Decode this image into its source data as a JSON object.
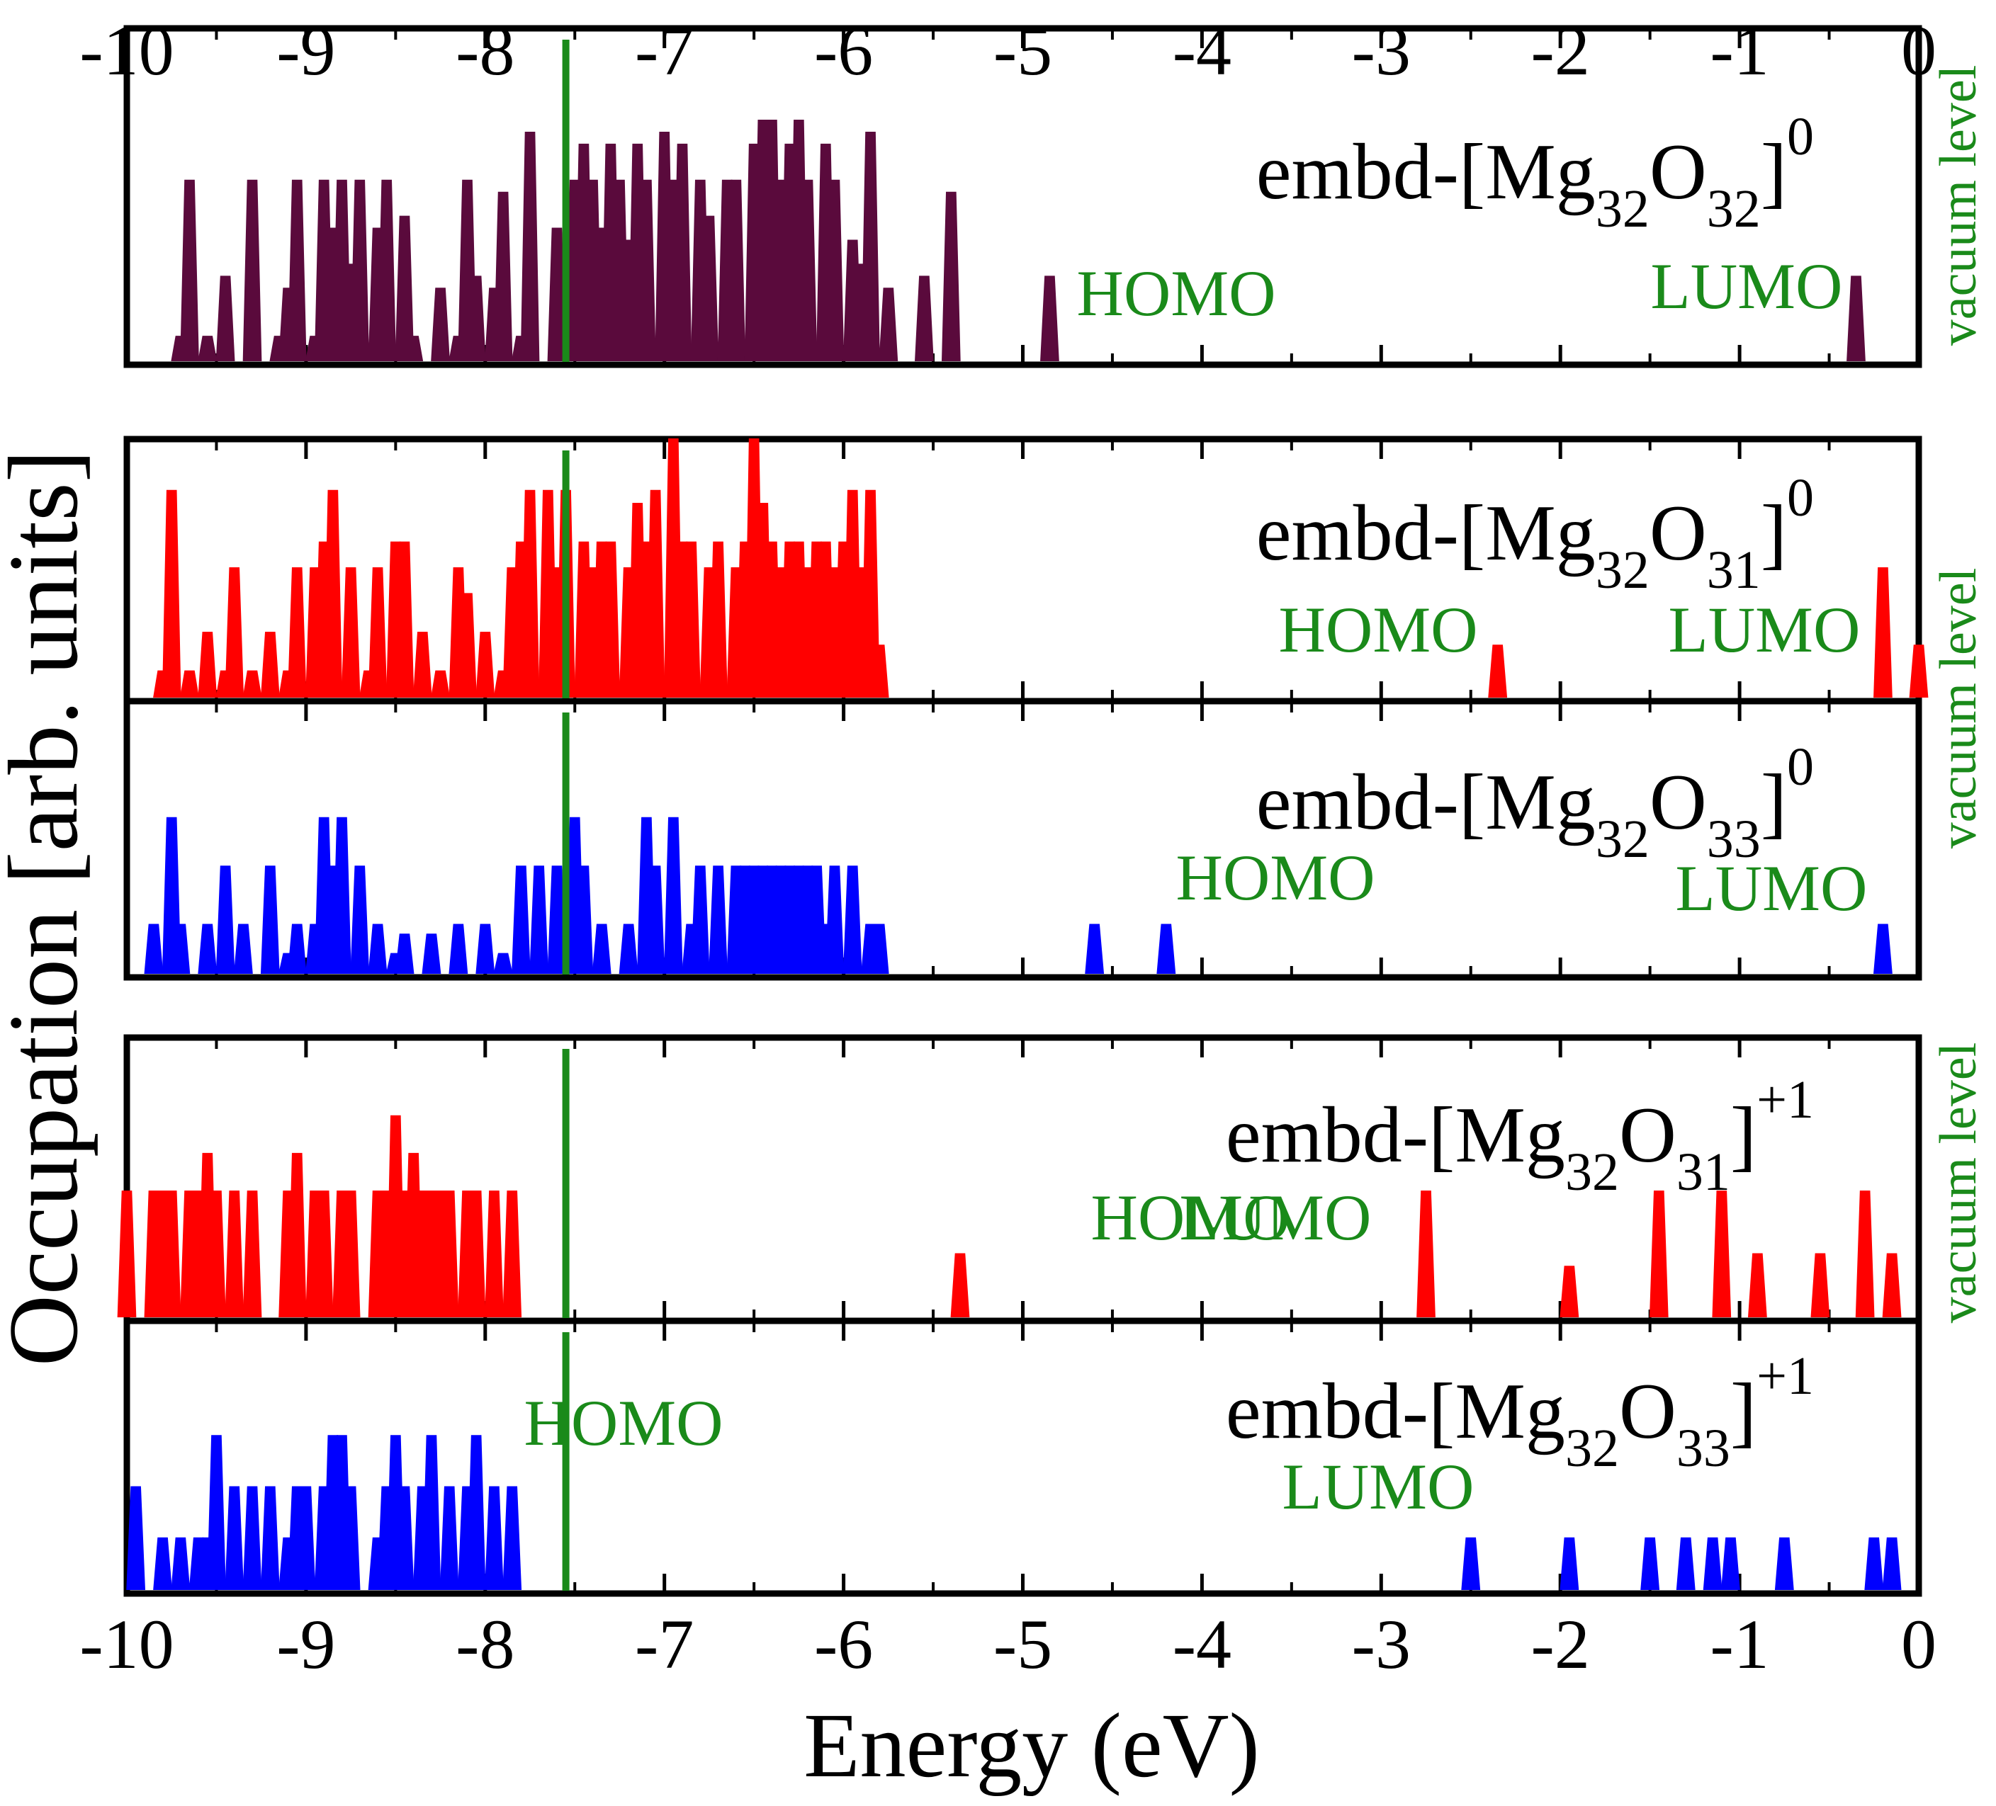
{
  "chart_data": {
    "type": "area",
    "x_range": [
      -10,
      0
    ],
    "xlabel": "Energy (eV)",
    "ylabel": "Occupation [arb. units]",
    "x_ticks": [
      -10,
      -9,
      -8,
      -7,
      -6,
      -5,
      -4,
      -3,
      -2,
      -1,
      0
    ],
    "x_tick_labels": [
      "-10",
      "-9",
      "-8",
      "-7",
      "-6",
      "-5",
      "-4",
      "-3",
      "-2",
      "-1",
      "0"
    ],
    "reference_line_energy": -7.55,
    "vacuum_level_label": "vacuum level",
    "colors": {
      "purple": "#5a0a3c",
      "red": "#ff0000",
      "blue": "#0000ff",
      "green": "#1a8a1a",
      "axis": "#000000"
    },
    "panels": [
      {
        "name": "embd-[Mg32O32]0",
        "color": "purple",
        "title": {
          "prefix": "embd-[Mg",
          "sub1": "32",
          "mid": "O",
          "sub2": "32",
          "suffix": "]",
          "charge": "0"
        },
        "homo_label": "HOMO",
        "lumo_label": "LUMO",
        "homo_energy": -4.85,
        "lumo_energy": -0.35,
        "levels": [
          [
            -9.7,
            0.1
          ],
          [
            -9.65,
            0.75
          ],
          [
            -9.55,
            0.1
          ],
          [
            -9.45,
            0.35
          ],
          [
            -9.3,
            0.75
          ],
          [
            -9.15,
            0.1
          ],
          [
            -9.1,
            0.3
          ],
          [
            -9.05,
            0.75
          ],
          [
            -8.95,
            0.1
          ],
          [
            -8.9,
            0.75
          ],
          [
            -8.85,
            0.55
          ],
          [
            -8.8,
            0.75
          ],
          [
            -8.75,
            0.4
          ],
          [
            -8.7,
            0.75
          ],
          [
            -8.6,
            0.55
          ],
          [
            -8.55,
            0.75
          ],
          [
            -8.45,
            0.6
          ],
          [
            -8.4,
            0.1
          ],
          [
            -8.25,
            0.3
          ],
          [
            -8.15,
            0.1
          ],
          [
            -8.1,
            0.75
          ],
          [
            -8.05,
            0.35
          ],
          [
            -7.95,
            0.3
          ],
          [
            -7.9,
            0.7
          ],
          [
            -7.8,
            0.1
          ],
          [
            -7.75,
            0.95
          ],
          [
            -7.6,
            0.55
          ],
          [
            -7.5,
            0.75
          ],
          [
            -7.45,
            0.9
          ],
          [
            -7.4,
            0.75
          ],
          [
            -7.35,
            0.55
          ],
          [
            -7.3,
            0.9
          ],
          [
            -7.25,
            0.75
          ],
          [
            -7.2,
            0.5
          ],
          [
            -7.15,
            0.9
          ],
          [
            -7.1,
            0.75
          ],
          [
            -7.0,
            0.95
          ],
          [
            -6.95,
            0.75
          ],
          [
            -6.9,
            0.9
          ],
          [
            -6.8,
            0.75
          ],
          [
            -6.75,
            0.6
          ],
          [
            -6.65,
            0.75
          ],
          [
            -6.6,
            0.75
          ],
          [
            -6.5,
            0.9
          ],
          [
            -6.45,
            1.0
          ],
          [
            -6.4,
            1.0
          ],
          [
            -6.35,
            0.75
          ],
          [
            -6.3,
            0.9
          ],
          [
            -6.25,
            1.0
          ],
          [
            -6.2,
            0.75
          ],
          [
            -6.1,
            0.9
          ],
          [
            -6.05,
            0.75
          ],
          [
            -5.95,
            0.5
          ],
          [
            -5.9,
            0.4
          ],
          [
            -5.85,
            0.95
          ],
          [
            -5.75,
            0.3
          ],
          [
            -5.55,
            0.35
          ],
          [
            -5.4,
            0.7
          ],
          [
            -4.85,
            0.35
          ],
          [
            -0.35,
            0.35
          ]
        ]
      },
      {
        "name": "embd-[Mg32O31]0",
        "color": "red",
        "title": {
          "prefix": "embd-[Mg",
          "sub1": "32",
          "mid": "O",
          "sub2": "31",
          "suffix": "]",
          "charge": "0"
        },
        "homo_label": "HOMO",
        "lumo_label": "LUMO",
        "homo_energy": -2.35,
        "lumo_energy": -0.2,
        "levels": [
          [
            -9.8,
            0.1
          ],
          [
            -9.75,
            0.8
          ],
          [
            -9.65,
            0.1
          ],
          [
            -9.55,
            0.25
          ],
          [
            -9.45,
            0.1
          ],
          [
            -9.4,
            0.5
          ],
          [
            -9.3,
            0.1
          ],
          [
            -9.2,
            0.25
          ],
          [
            -9.1,
            0.1
          ],
          [
            -9.05,
            0.5
          ],
          [
            -8.95,
            0.5
          ],
          [
            -8.9,
            0.6
          ],
          [
            -8.85,
            0.8
          ],
          [
            -8.75,
            0.5
          ],
          [
            -8.65,
            0.1
          ],
          [
            -8.6,
            0.5
          ],
          [
            -8.5,
            0.6
          ],
          [
            -8.45,
            0.6
          ],
          [
            -8.35,
            0.25
          ],
          [
            -8.25,
            0.1
          ],
          [
            -8.15,
            0.5
          ],
          [
            -8.1,
            0.4
          ],
          [
            -8.0,
            0.25
          ],
          [
            -7.9,
            0.1
          ],
          [
            -7.85,
            0.5
          ],
          [
            -7.8,
            0.6
          ],
          [
            -7.75,
            0.8
          ],
          [
            -7.65,
            0.8
          ],
          [
            -7.6,
            0.5
          ],
          [
            -7.55,
            0.8
          ],
          [
            -7.45,
            0.6
          ],
          [
            -7.4,
            0.5
          ],
          [
            -7.35,
            0.6
          ],
          [
            -7.3,
            0.6
          ],
          [
            -7.2,
            0.5
          ],
          [
            -7.15,
            0.75
          ],
          [
            -7.1,
            0.6
          ],
          [
            -7.05,
            0.8
          ],
          [
            -6.95,
            1.0
          ],
          [
            -6.9,
            0.6
          ],
          [
            -6.85,
            0.6
          ],
          [
            -6.75,
            0.5
          ],
          [
            -6.7,
            0.6
          ],
          [
            -6.6,
            0.5
          ],
          [
            -6.55,
            0.6
          ],
          [
            -6.5,
            1.0
          ],
          [
            -6.45,
            0.75
          ],
          [
            -6.4,
            0.6
          ],
          [
            -6.35,
            0.5
          ],
          [
            -6.3,
            0.6
          ],
          [
            -6.25,
            0.6
          ],
          [
            -6.2,
            0.5
          ],
          [
            -6.15,
            0.6
          ],
          [
            -6.1,
            0.6
          ],
          [
            -6.05,
            0.5
          ],
          [
            -6.0,
            0.6
          ],
          [
            -5.95,
            0.8
          ],
          [
            -5.9,
            0.5
          ],
          [
            -5.85,
            0.8
          ],
          [
            -5.8,
            0.2
          ],
          [
            -2.35,
            0.2
          ],
          [
            -0.2,
            0.5
          ],
          [
            0.0,
            0.2
          ]
        ]
      },
      {
        "name": "embd-[Mg32O33]0",
        "color": "blue",
        "title": {
          "prefix": "embd-[Mg",
          "sub1": "32",
          "mid": "O",
          "sub2": "33",
          "suffix": "]",
          "charge": "0"
        },
        "homo_label": "HOMO",
        "lumo_label": "LUMO",
        "homo_energy": -4.25,
        "lumo_energy": -0.2,
        "levels": [
          [
            -9.85,
            0.25
          ],
          [
            -9.75,
            0.8
          ],
          [
            -9.7,
            0.25
          ],
          [
            -9.55,
            0.25
          ],
          [
            -9.45,
            0.55
          ],
          [
            -9.35,
            0.25
          ],
          [
            -9.2,
            0.55
          ],
          [
            -9.1,
            0.1
          ],
          [
            -9.05,
            0.25
          ],
          [
            -8.95,
            0.25
          ],
          [
            -8.9,
            0.8
          ],
          [
            -8.85,
            0.55
          ],
          [
            -8.8,
            0.8
          ],
          [
            -8.7,
            0.55
          ],
          [
            -8.6,
            0.25
          ],
          [
            -8.5,
            0.1
          ],
          [
            -8.45,
            0.2
          ],
          [
            -8.3,
            0.2
          ],
          [
            -8.15,
            0.25
          ],
          [
            -8.0,
            0.25
          ],
          [
            -7.9,
            0.1
          ],
          [
            -7.8,
            0.55
          ],
          [
            -7.7,
            0.55
          ],
          [
            -7.6,
            0.55
          ],
          [
            -7.5,
            0.8
          ],
          [
            -7.45,
            0.55
          ],
          [
            -7.35,
            0.25
          ],
          [
            -7.2,
            0.25
          ],
          [
            -7.1,
            0.8
          ],
          [
            -7.05,
            0.55
          ],
          [
            -6.95,
            0.8
          ],
          [
            -6.85,
            0.25
          ],
          [
            -6.8,
            0.55
          ],
          [
            -6.7,
            0.55
          ],
          [
            -6.6,
            0.55
          ],
          [
            -6.55,
            0.55
          ],
          [
            -6.5,
            0.55
          ],
          [
            -6.45,
            0.55
          ],
          [
            -6.4,
            0.55
          ],
          [
            -6.35,
            0.55
          ],
          [
            -6.3,
            0.55
          ],
          [
            -6.25,
            0.55
          ],
          [
            -6.2,
            0.55
          ],
          [
            -6.15,
            0.55
          ],
          [
            -6.1,
            0.25
          ],
          [
            -6.05,
            0.55
          ],
          [
            -5.95,
            0.55
          ],
          [
            -5.85,
            0.25
          ],
          [
            -5.8,
            0.25
          ],
          [
            -4.6,
            0.25
          ],
          [
            -4.2,
            0.25
          ],
          [
            -0.2,
            0.25
          ]
        ]
      },
      {
        "name": "embd-[Mg32O31]+1",
        "color": "red",
        "title": {
          "prefix": "embd-[Mg",
          "sub1": "32",
          "mid": "O",
          "sub2": "31",
          "suffix": "]",
          "charge": "+1"
        },
        "homo_label": "HOMO",
        "lumo_label": "LUMO",
        "homo_energy": -5.35,
        "lumo_energy": -2.75,
        "levels": [
          [
            -10.0,
            0.5
          ],
          [
            -9.85,
            0.5
          ],
          [
            -9.8,
            0.5
          ],
          [
            -9.75,
            0.5
          ],
          [
            -9.65,
            0.5
          ],
          [
            -9.6,
            0.5
          ],
          [
            -9.55,
            0.65
          ],
          [
            -9.5,
            0.5
          ],
          [
            -9.4,
            0.5
          ],
          [
            -9.3,
            0.5
          ],
          [
            -9.1,
            0.5
          ],
          [
            -9.05,
            0.65
          ],
          [
            -8.95,
            0.5
          ],
          [
            -8.9,
            0.5
          ],
          [
            -8.8,
            0.5
          ],
          [
            -8.75,
            0.5
          ],
          [
            -8.6,
            0.5
          ],
          [
            -8.55,
            0.5
          ],
          [
            -8.5,
            0.8
          ],
          [
            -8.45,
            0.5
          ],
          [
            -8.4,
            0.65
          ],
          [
            -8.35,
            0.5
          ],
          [
            -8.3,
            0.5
          ],
          [
            -8.25,
            0.5
          ],
          [
            -8.2,
            0.5
          ],
          [
            -8.1,
            0.5
          ],
          [
            -8.05,
            0.5
          ],
          [
            -7.95,
            0.5
          ],
          [
            -7.85,
            0.5
          ],
          [
            -5.35,
            0.25
          ],
          [
            -2.75,
            0.5
          ],
          [
            -1.95,
            0.2
          ],
          [
            -1.45,
            0.5
          ],
          [
            -1.1,
            0.5
          ],
          [
            -0.9,
            0.25
          ],
          [
            -0.55,
            0.25
          ],
          [
            -0.3,
            0.5
          ],
          [
            -0.15,
            0.25
          ]
        ]
      },
      {
        "name": "embd-[Mg32O33]+1",
        "color": "blue",
        "title": {
          "prefix": "embd-[Mg",
          "sub1": "32",
          "mid": "O",
          "sub2": "33",
          "suffix": "]",
          "charge": "+1"
        },
        "homo_label": "HOMO",
        "lumo_label": "LUMO",
        "homo_energy": -7.85,
        "lumo_energy": -2.5,
        "levels": [
          [
            -9.95,
            0.5
          ],
          [
            -9.8,
            0.25
          ],
          [
            -9.7,
            0.25
          ],
          [
            -9.6,
            0.25
          ],
          [
            -9.55,
            0.25
          ],
          [
            -9.5,
            0.75
          ],
          [
            -9.4,
            0.5
          ],
          [
            -9.3,
            0.5
          ],
          [
            -9.2,
            0.5
          ],
          [
            -9.1,
            0.25
          ],
          [
            -9.05,
            0.5
          ],
          [
            -9.0,
            0.5
          ],
          [
            -8.9,
            0.5
          ],
          [
            -8.85,
            0.75
          ],
          [
            -8.8,
            0.75
          ],
          [
            -8.75,
            0.5
          ],
          [
            -8.6,
            0.25
          ],
          [
            -8.55,
            0.5
          ],
          [
            -8.5,
            0.75
          ],
          [
            -8.45,
            0.5
          ],
          [
            -8.35,
            0.5
          ],
          [
            -8.3,
            0.75
          ],
          [
            -8.2,
            0.5
          ],
          [
            -8.1,
            0.5
          ],
          [
            -8.05,
            0.75
          ],
          [
            -7.95,
            0.5
          ],
          [
            -7.85,
            0.5
          ],
          [
            -2.5,
            0.25
          ],
          [
            -1.95,
            0.25
          ],
          [
            -1.5,
            0.25
          ],
          [
            -1.3,
            0.25
          ],
          [
            -1.15,
            0.25
          ],
          [
            -1.05,
            0.25
          ],
          [
            -0.75,
            0.25
          ],
          [
            -0.25,
            0.25
          ],
          [
            -0.15,
            0.25
          ]
        ]
      }
    ]
  }
}
